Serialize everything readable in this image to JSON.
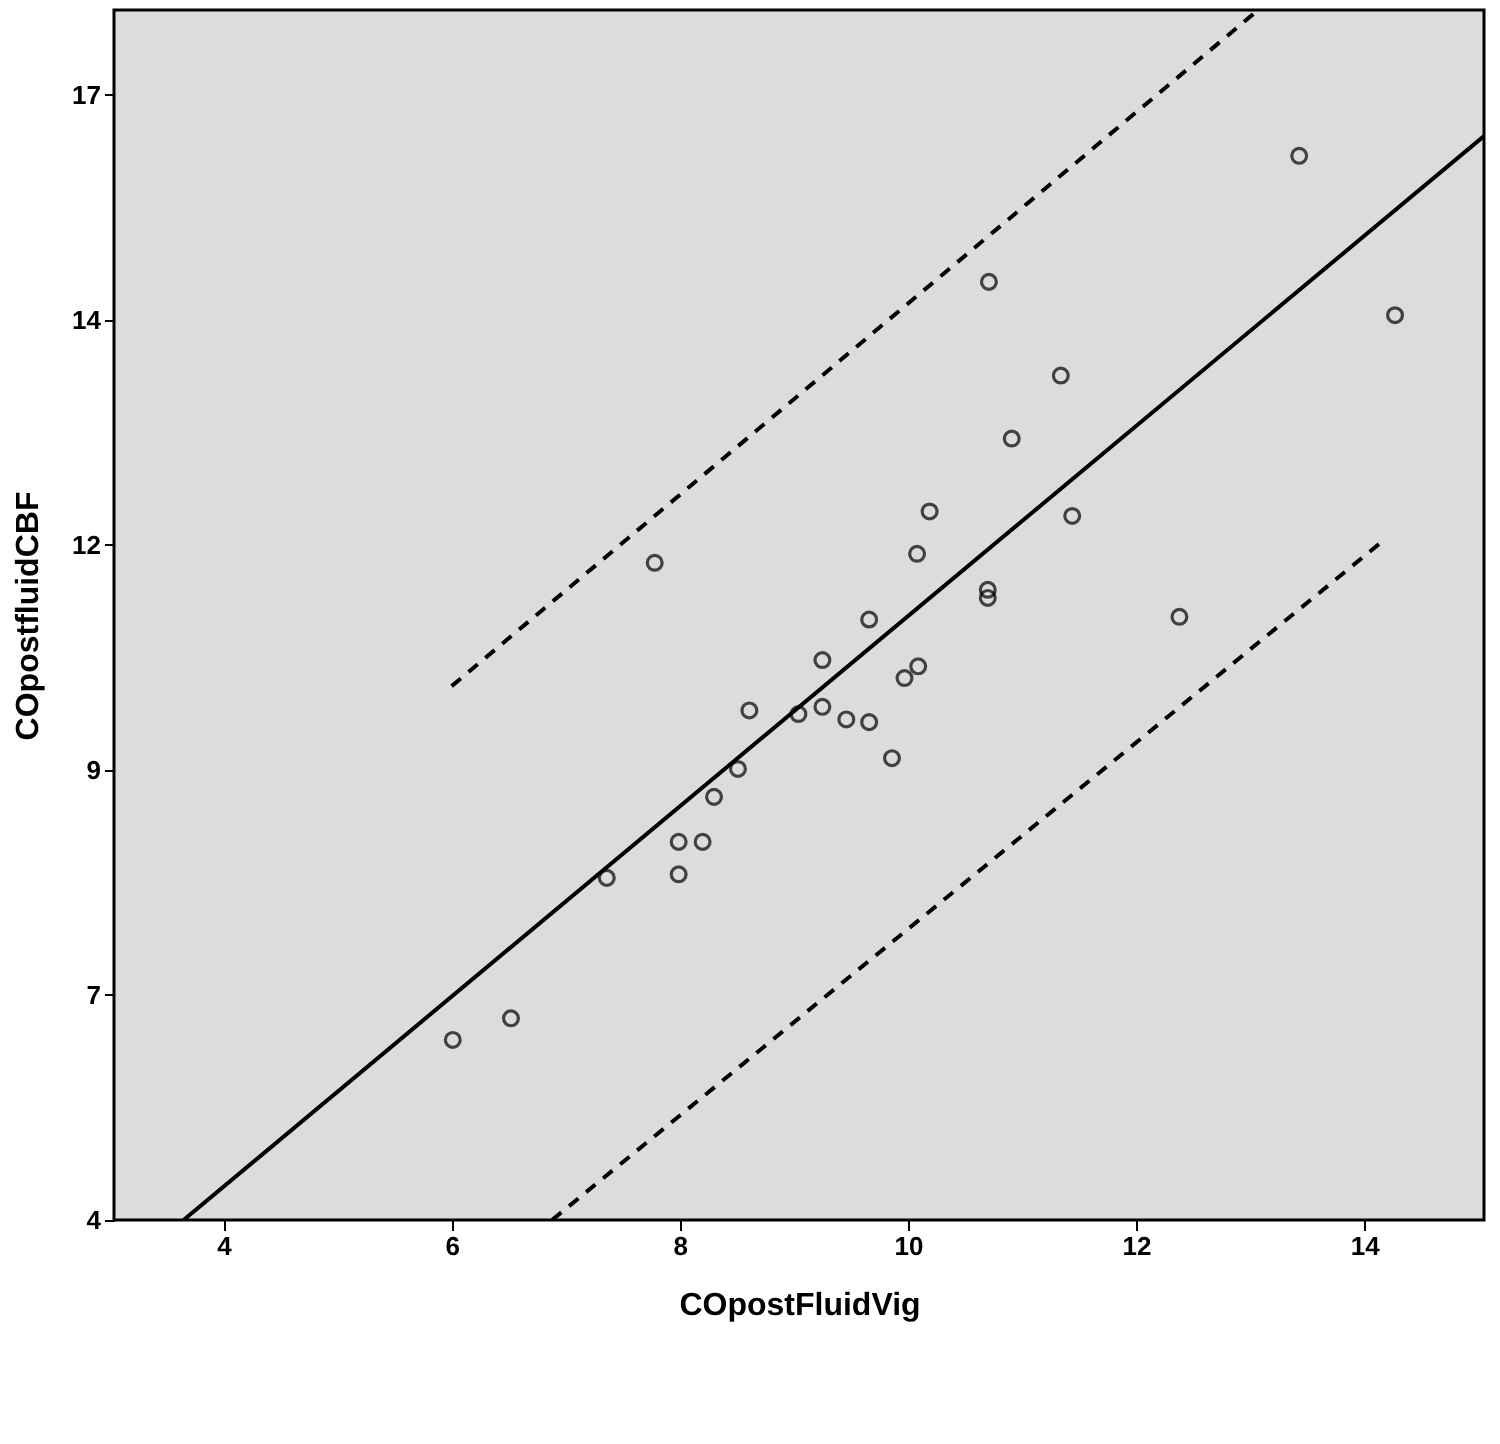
{
  "chart_data": {
    "type": "scatter",
    "xlabel": "COpostFluidVig",
    "ylabel": "COpostfluidCBF",
    "xlim": [
      3.04,
      15.05
    ],
    "ylim": [
      4,
      17.44
    ],
    "xticks": [
      4,
      6,
      8,
      10,
      12,
      14
    ],
    "yticks": [
      4,
      {
        "value": 6.5,
        "label": "7"
      },
      9,
      {
        "value": 11.5,
        "label": "12"
      },
      14,
      {
        "value": 16.5,
        "label": "17"
      }
    ],
    "grid": false,
    "series": [
      {
        "marker": "circle",
        "color": "#000000",
        "x": [
          7.78,
          10.19,
          10.08,
          10.7,
          10.7,
          9.66,
          9.25,
          10.09,
          9.97,
          8.61,
          9.04,
          9.25,
          9.46,
          9.66,
          9.86,
          8.51,
          8.3,
          7.99,
          8.2,
          7.36,
          7.99,
          6.52,
          6.01,
          13.43,
          14.27,
          10.71,
          11.34,
          10.91,
          11.44,
          12.38
        ],
        "values": [
          11.3,
          11.87,
          11.4,
          11.0,
          10.91,
          10.67,
          10.22,
          10.15,
          10.02,
          9.66,
          9.62,
          9.7,
          9.56,
          9.53,
          9.13,
          9.01,
          8.7,
          8.2,
          8.2,
          7.8,
          7.84,
          6.24,
          6.0,
          15.82,
          14.05,
          14.42,
          13.38,
          12.68,
          11.82,
          10.7
        ]
      },
      {
        "type": "line",
        "color": "#000000",
        "line_style": "solid",
        "x": [
          3.65,
          15.05
        ],
        "values": [
          4.0,
          16.04
        ]
      },
      {
        "type": "line",
        "color": "#000000",
        "line_style": "dashed",
        "x": [
          6.0,
          13.07
        ],
        "values": [
          9.93,
          17.44
        ]
      },
      {
        "type": "line",
        "color": "#000000",
        "line_style": "dashed",
        "x": [
          6.88,
          14.18
        ],
        "values": [
          4.0,
          11.56
        ]
      }
    ]
  }
}
